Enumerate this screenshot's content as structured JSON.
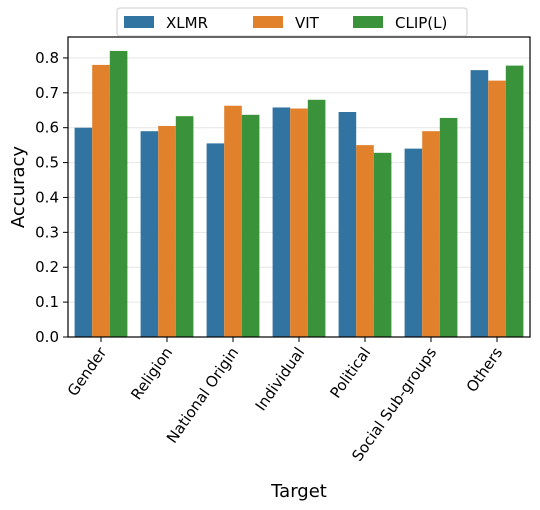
{
  "chart_data": {
    "type": "bar",
    "title": "",
    "xlabel": "Target",
    "ylabel": "Accuracy",
    "ylim": [
      0,
      0.86
    ],
    "yticks": [
      "0.0",
      "0.1",
      "0.2",
      "0.3",
      "0.4",
      "0.5",
      "0.6",
      "0.7",
      "0.8"
    ],
    "grid": "horizontal",
    "legend_position": "top-center",
    "categories": [
      "Gender",
      "Religion",
      "National Origin",
      "Individual",
      "Political",
      "Social Sub-groups",
      "Others"
    ],
    "series": [
      {
        "name": "XLMR",
        "color": "#3274a1",
        "values": [
          0.6,
          0.59,
          0.555,
          0.658,
          0.645,
          0.54,
          0.765
        ]
      },
      {
        "name": "VIT",
        "color": "#e1812c",
        "values": [
          0.78,
          0.605,
          0.663,
          0.655,
          0.55,
          0.59,
          0.735
        ]
      },
      {
        "name": "CLIP(L)",
        "color": "#3a923a",
        "values": [
          0.82,
          0.633,
          0.637,
          0.68,
          0.528,
          0.628,
          0.778
        ]
      }
    ]
  }
}
